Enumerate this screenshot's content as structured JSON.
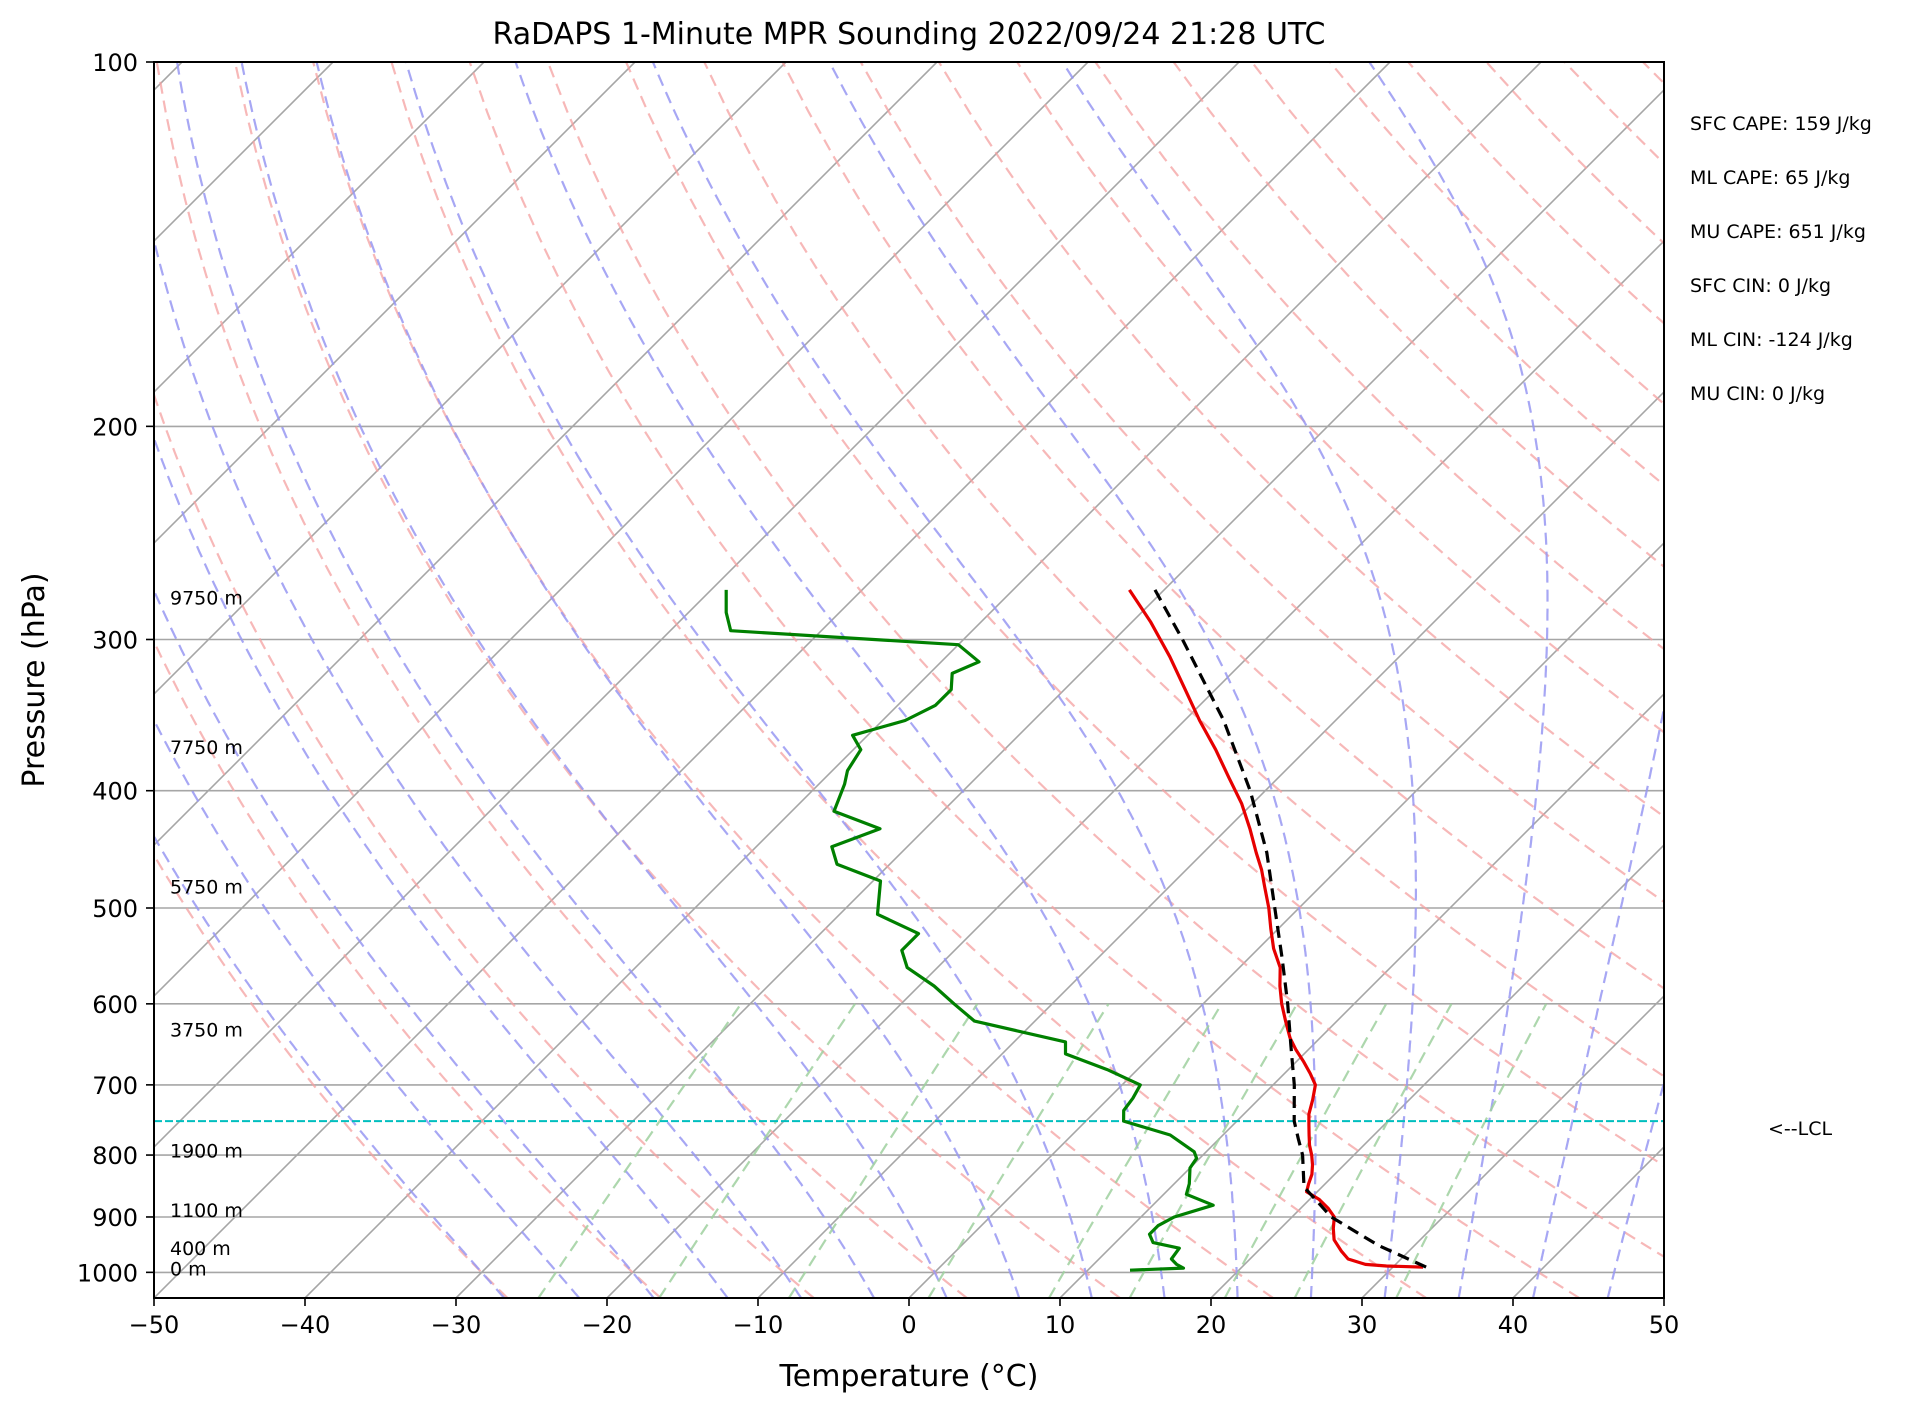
{
  "chart_data": {
    "type": "line",
    "title": "RaDAPS 1-Minute MPR Sounding 2022/09/24 21:28 UTC",
    "xlabel": "Temperature (°C)",
    "ylabel": "Pressure (hPa)",
    "xlim": [
      -50,
      50
    ],
    "ylim": [
      1050,
      100
    ],
    "y_scale": "log",
    "skew": "skew-T log-p diagram",
    "grid": true,
    "x_ticks": [
      -50,
      -40,
      -30,
      -20,
      -10,
      0,
      10,
      20,
      30,
      40,
      50
    ],
    "x_tick_labels": [
      "−50",
      "−40",
      "−30",
      "−20",
      "−10",
      "0",
      "10",
      "20",
      "30",
      "40",
      "50"
    ],
    "y_ticks": [
      1000,
      900,
      800,
      700,
      600,
      500,
      400,
      300,
      200,
      100
    ],
    "y_tick_labels": [
      "1000",
      "900",
      "800",
      "700",
      "600",
      "500",
      "400",
      "300",
      "200",
      "100"
    ],
    "series": [
      {
        "role": "temperature",
        "color": "#e60000",
        "style": "solid",
        "points": [
          {
            "p": 990,
            "t": 32.0
          },
          {
            "p": 988,
            "t": 29.5
          },
          {
            "p": 985,
            "t": 28.0
          },
          {
            "p": 975,
            "t": 26.5
          },
          {
            "p": 960,
            "t": 25.5
          },
          {
            "p": 940,
            "t": 24.3
          },
          {
            "p": 920,
            "t": 23.5
          },
          {
            "p": 900,
            "t": 22.8
          },
          {
            "p": 885,
            "t": 21.8
          },
          {
            "p": 870,
            "t": 20.6
          },
          {
            "p": 858,
            "t": 19.3
          },
          {
            "p": 845,
            "t": 18.9
          },
          {
            "p": 830,
            "t": 18.5
          },
          {
            "p": 815,
            "t": 17.9
          },
          {
            "p": 800,
            "t": 17.2
          },
          {
            "p": 785,
            "t": 16.4
          },
          {
            "p": 770,
            "t": 15.7
          },
          {
            "p": 755,
            "t": 15.0
          },
          {
            "p": 740,
            "t": 14.3
          },
          {
            "p": 720,
            "t": 13.6
          },
          {
            "p": 700,
            "t": 12.8
          },
          {
            "p": 685,
            "t": 11.7
          },
          {
            "p": 670,
            "t": 10.5
          },
          {
            "p": 655,
            "t": 9.2
          },
          {
            "p": 640,
            "t": 8.0
          },
          {
            "p": 620,
            "t": 6.6
          },
          {
            "p": 600,
            "t": 5.2
          },
          {
            "p": 580,
            "t": 3.9
          },
          {
            "p": 560,
            "t": 2.7
          },
          {
            "p": 540,
            "t": 1.0
          },
          {
            "p": 520,
            "t": -0.5
          },
          {
            "p": 500,
            "t": -2.0
          },
          {
            "p": 480,
            "t": -3.7
          },
          {
            "p": 465,
            "t": -5.0
          },
          {
            "p": 450,
            "t": -6.5
          },
          {
            "p": 430,
            "t": -8.5
          },
          {
            "p": 410,
            "t": -10.7
          },
          {
            "p": 390,
            "t": -13.3
          },
          {
            "p": 370,
            "t": -16.0
          },
          {
            "p": 350,
            "t": -19.0
          },
          {
            "p": 330,
            "t": -22.0
          },
          {
            "p": 310,
            "t": -25.2
          },
          {
            "p": 290,
            "t": -28.8
          },
          {
            "p": 273,
            "t": -32.3
          }
        ]
      },
      {
        "role": "dewpoint",
        "color": "#008000",
        "style": "solid",
        "points": [
          {
            "p": 996,
            "t": 12.8
          },
          {
            "p": 992,
            "t": 16.2
          },
          {
            "p": 985,
            "t": 15.5
          },
          {
            "p": 975,
            "t": 14.8
          },
          {
            "p": 955,
            "t": 14.6
          },
          {
            "p": 945,
            "t": 12.5
          },
          {
            "p": 930,
            "t": 11.7
          },
          {
            "p": 915,
            "t": 11.7
          },
          {
            "p": 900,
            "t": 12.2
          },
          {
            "p": 880,
            "t": 14.0
          },
          {
            "p": 862,
            "t": 11.5
          },
          {
            "p": 845,
            "t": 11.0
          },
          {
            "p": 820,
            "t": 10.0
          },
          {
            "p": 805,
            "t": 9.8
          },
          {
            "p": 795,
            "t": 9.2
          },
          {
            "p": 770,
            "t": 6.5
          },
          {
            "p": 750,
            "t": 2.5
          },
          {
            "p": 735,
            "t": 1.8
          },
          {
            "p": 718,
            "t": 1.6
          },
          {
            "p": 700,
            "t": 1.2
          },
          {
            "p": 680,
            "t": -2.0
          },
          {
            "p": 660,
            "t": -5.8
          },
          {
            "p": 645,
            "t": -6.6
          },
          {
            "p": 620,
            "t": -14.0
          },
          {
            "p": 600,
            "t": -16.5
          },
          {
            "p": 580,
            "t": -19.0
          },
          {
            "p": 560,
            "t": -22.0
          },
          {
            "p": 542,
            "t": -23.5
          },
          {
            "p": 525,
            "t": -23.5
          },
          {
            "p": 506,
            "t": -27.5
          },
          {
            "p": 475,
            "t": -29.5
          },
          {
            "p": 460,
            "t": -33.5
          },
          {
            "p": 445,
            "t": -35.0
          },
          {
            "p": 430,
            "t": -33.0
          },
          {
            "p": 416,
            "t": -37.2
          },
          {
            "p": 395,
            "t": -38.3
          },
          {
            "p": 385,
            "t": -39.0
          },
          {
            "p": 370,
            "t": -39.5
          },
          {
            "p": 360,
            "t": -41.0
          },
          {
            "p": 350,
            "t": -38.5
          },
          {
            "p": 340,
            "t": -37.5
          },
          {
            "p": 330,
            "t": -37.5
          },
          {
            "p": 320,
            "t": -38.5
          },
          {
            "p": 313,
            "t": -37.5
          },
          {
            "p": 303,
            "t": -40.0
          },
          {
            "p": 295,
            "t": -56.0
          },
          {
            "p": 285,
            "t": -57.5
          },
          {
            "p": 273,
            "t": -59.0
          }
        ]
      },
      {
        "role": "parcel profile",
        "color": "#000000",
        "style": "dashed",
        "points": [
          {
            "p": 990,
            "t": 32.2
          },
          {
            "p": 950,
            "t": 27.6
          },
          {
            "p": 900,
            "t": 22.6
          },
          {
            "p": 850,
            "t": 18.8
          },
          {
            "p": 800,
            "t": 16.6
          },
          {
            "p": 775,
            "t": 15.2
          },
          {
            "p": 750,
            "t": 13.8
          },
          {
            "p": 700,
            "t": 11.4
          },
          {
            "p": 650,
            "t": 8.6
          },
          {
            "p": 600,
            "t": 5.6
          },
          {
            "p": 550,
            "t": 2.2
          },
          {
            "p": 500,
            "t": -1.6
          },
          {
            "p": 450,
            "t": -5.8
          },
          {
            "p": 400,
            "t": -11.0
          },
          {
            "p": 350,
            "t": -17.4
          },
          {
            "p": 300,
            "t": -25.5
          },
          {
            "p": 273,
            "t": -30.6
          }
        ]
      }
    ],
    "lcl": {
      "pressure": 750,
      "label": "<--LCL",
      "color": "#00bfbf"
    },
    "height_labels": [
      {
        "p": 993,
        "label": "0 m"
      },
      {
        "p": 955,
        "label": "400 m"
      },
      {
        "p": 888,
        "label": "1100 m"
      },
      {
        "p": 793,
        "label": "1900 m"
      },
      {
        "p": 630,
        "label": "3750 m"
      },
      {
        "p": 480,
        "label": "5750 m"
      },
      {
        "p": 368,
        "label": "7750 m"
      },
      {
        "p": 277,
        "label": "9750 m"
      }
    ],
    "indices": [
      "SFC CAPE: 159 J/kg",
      "ML CAPE: 65 J/kg",
      "MU CAPE: 651 J/kg",
      "SFC CIN: 0 J/kg",
      "ML CIN: -124 J/kg",
      "MU CIN: 0 J/kg"
    ],
    "reference_lines": {
      "dry_adiabat_color": "#f4a0a0",
      "moist_adiabat_color": "#9898f2",
      "mixing_ratio_color": "#9fd09f",
      "isotherm_color": "#a6a6a6"
    }
  }
}
